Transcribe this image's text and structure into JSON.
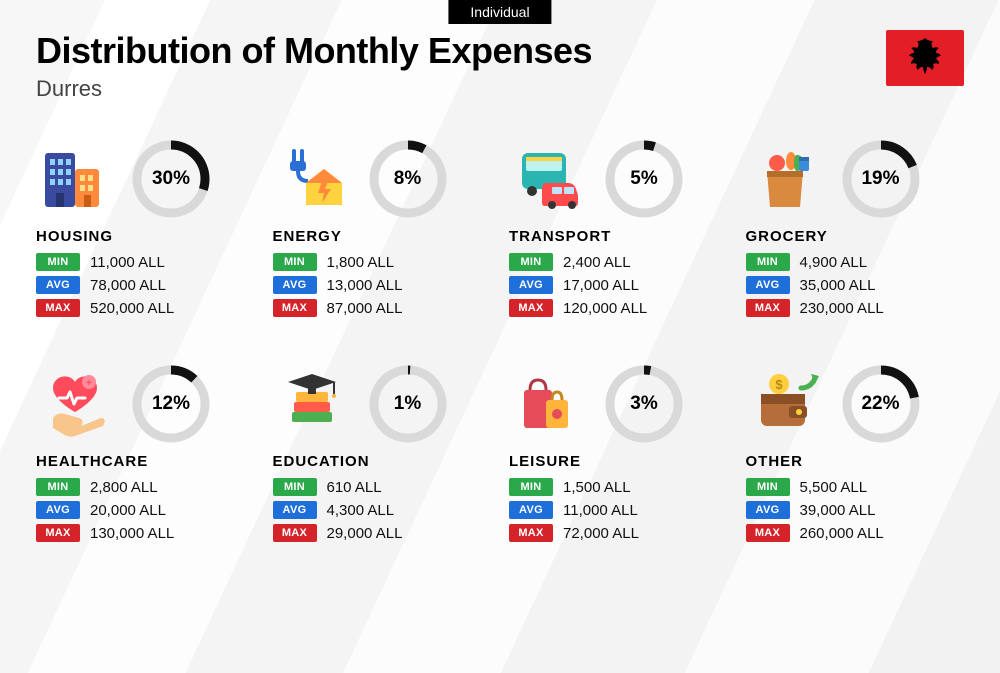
{
  "tab_label": "Individual",
  "title": "Distribution of Monthly Expenses",
  "subtitle": "Durres",
  "currency_suffix": "ALL",
  "badges": {
    "min": "MIN",
    "avg": "AVG",
    "max": "MAX"
  },
  "colors": {
    "badge_min": "#2aa84a",
    "badge_avg": "#1e6fd9",
    "badge_max": "#d4242a",
    "ring_fg": "#111111",
    "ring_bg": "#d9d9d9",
    "flag_bg": "#e41e26",
    "tab_bg": "#000000"
  },
  "ring": {
    "radius": 34,
    "stroke_width": 9,
    "circumference": 213.63
  },
  "categories": [
    {
      "key": "housing",
      "name": "HOUSING",
      "percent": 30,
      "min": "11,000",
      "avg": "78,000",
      "max": "520,000",
      "icon": "buildings-icon"
    },
    {
      "key": "energy",
      "name": "ENERGY",
      "percent": 8,
      "min": "1,800",
      "avg": "13,000",
      "max": "87,000",
      "icon": "plug-house-icon"
    },
    {
      "key": "transport",
      "name": "TRANSPORT",
      "percent": 5,
      "min": "2,400",
      "avg": "17,000",
      "max": "120,000",
      "icon": "bus-car-icon"
    },
    {
      "key": "grocery",
      "name": "GROCERY",
      "percent": 19,
      "min": "4,900",
      "avg": "35,000",
      "max": "230,000",
      "icon": "grocery-bag-icon"
    },
    {
      "key": "healthcare",
      "name": "HEALTHCARE",
      "percent": 12,
      "min": "2,800",
      "avg": "20,000",
      "max": "130,000",
      "icon": "heart-hand-icon"
    },
    {
      "key": "education",
      "name": "EDUCATION",
      "percent": 1,
      "min": "610",
      "avg": "4,300",
      "max": "29,000",
      "icon": "grad-cap-books-icon"
    },
    {
      "key": "leisure",
      "name": "LEISURE",
      "percent": 3,
      "min": "1,500",
      "avg": "11,000",
      "max": "72,000",
      "icon": "shopping-bags-icon"
    },
    {
      "key": "other",
      "name": "OTHER",
      "percent": 22,
      "min": "5,500",
      "avg": "39,000",
      "max": "260,000",
      "icon": "wallet-arrow-icon"
    }
  ]
}
